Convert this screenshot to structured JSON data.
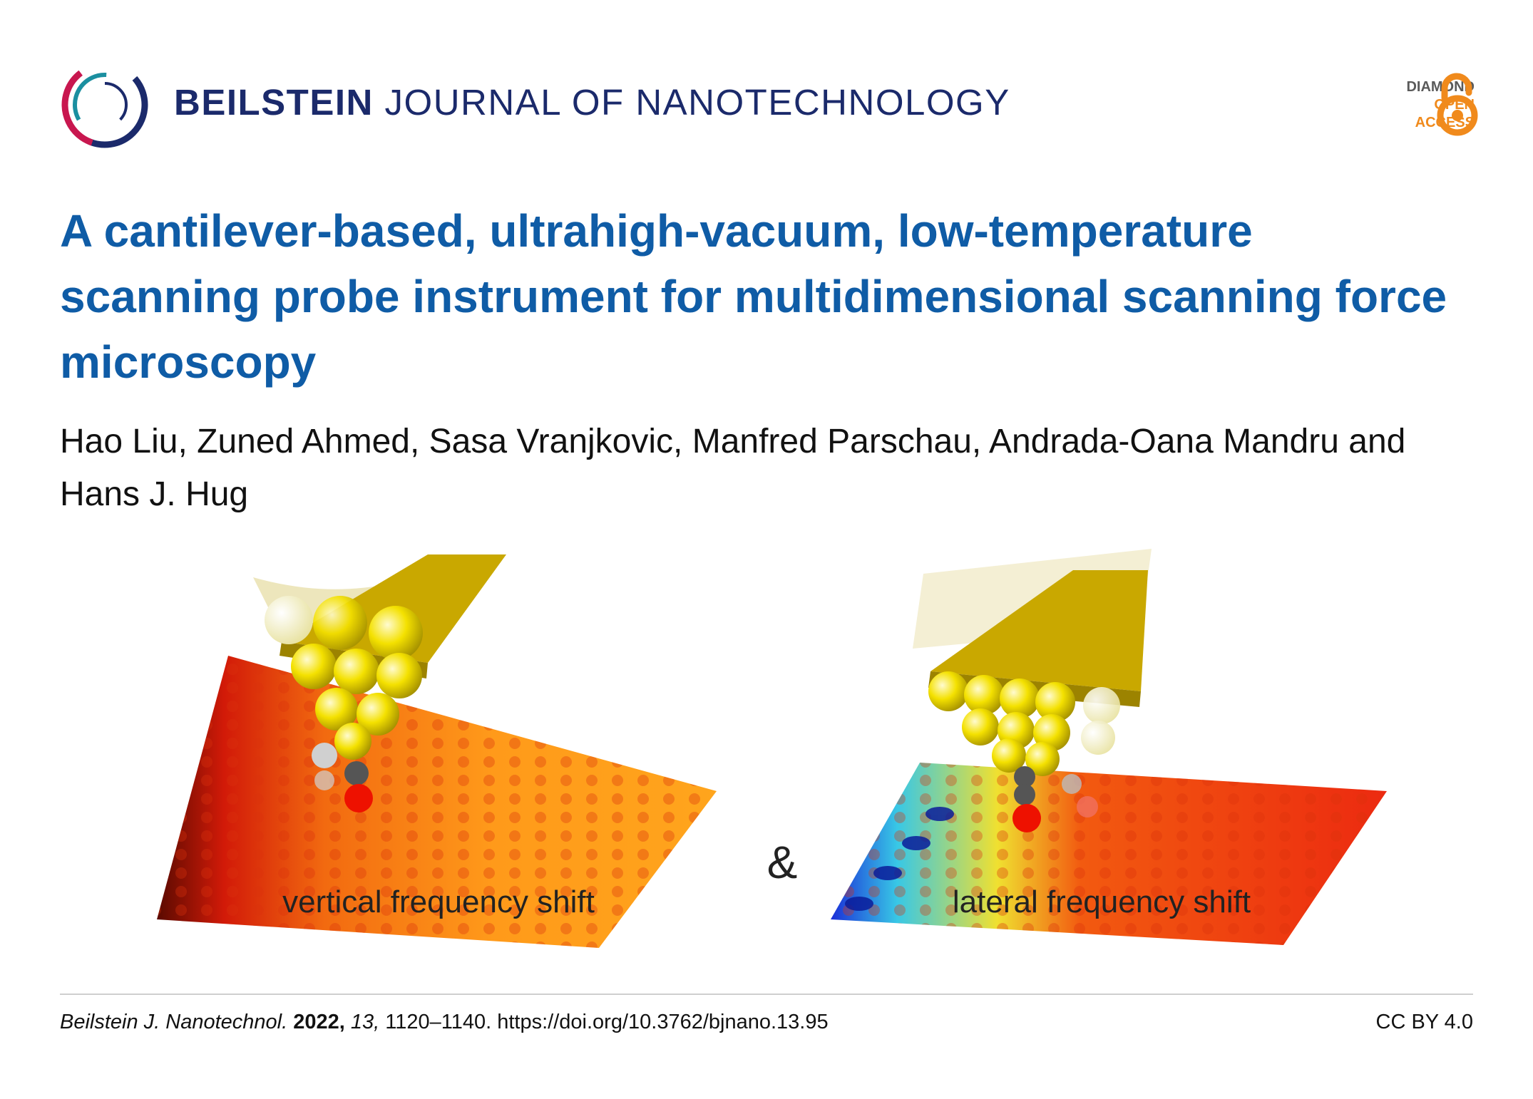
{
  "header": {
    "journal_bold": "BEILSTEIN",
    "journal_rest": " JOURNAL OF NANOTECHNOLOGY",
    "logo_icon": "beilstein-logo",
    "badge": {
      "line1": "DIAMOND",
      "line2": "OPEN",
      "line3": "ACCESS",
      "icon": "open-access-lock-icon",
      "accent_color": "#f08a1c"
    }
  },
  "article": {
    "title": "A cantilever-based, ultrahigh-vacuum, low-temperature scanning probe instrument for multidimensional scanning force microscopy",
    "authors": "Hao Liu, Zuned Ahmed, Sasa Vranjkovic, Manfred Parschau, Andrada-Oana Mandru and Hans J. Hug",
    "title_color": "#0f5ca6"
  },
  "graphic": {
    "left_label": "vertical frequency shift",
    "ampersand": "&",
    "right_label": "lateral frequency shift"
  },
  "footer": {
    "journal_abbrev": "Beilstein J. Nanotechnol.",
    "year": "2022,",
    "volume": "13,",
    "pages_doi": "1120–1140. https://doi.org/10.3762/bjnano.13.95",
    "license": "CC BY 4.0"
  }
}
